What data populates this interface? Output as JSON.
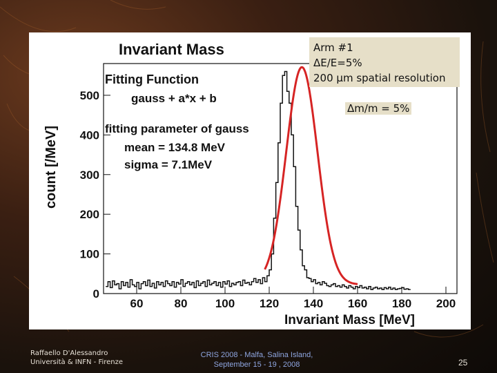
{
  "slide": {
    "footer_author_line1": "Raffaello D'Alessandro",
    "footer_author_line2": "Università & INFN - Firenze",
    "footer_conf_line1": "CRIS 2008 -   Malfa, Salina Island,",
    "footer_conf_line2": "September 15 - 19 , 2008",
    "page_number": "25"
  },
  "info_box": {
    "line1": "Arm #1",
    "line2": "ΔE/E=5%",
    "line3": "200 μm spatial resolution"
  },
  "mass_resolution_label": "Δm/m = 5%",
  "chart_data": {
    "type": "line",
    "title": "Invariant Mass",
    "xlabel": "Invariant Mass [MeV]",
    "ylabel": "count [/MeV]",
    "xlim": [
      45,
      205
    ],
    "ylim": [
      0,
      580
    ],
    "x_ticks": [
      60,
      80,
      100,
      120,
      140,
      160,
      180,
      200
    ],
    "y_ticks": [
      0,
      100,
      200,
      300,
      400,
      500
    ],
    "annotations": {
      "fitting_function_title": "Fitting Function",
      "fitting_function": "gauss + a*x + b",
      "params_title": "fitting parameter of gauss",
      "mean_text": "mean =  134.8 MeV",
      "sigma_text": "sigma = 7.1MeV"
    },
    "fit": {
      "mean": 134.8,
      "sigma": 7.1,
      "amplitude": 545,
      "a": -0.12,
      "b": 42
    },
    "series": [
      {
        "name": "histogram",
        "color": "#111111",
        "x_start": 46,
        "bin_width": 1,
        "values": [
          18,
          30,
          15,
          32,
          22,
          25,
          12,
          30,
          20,
          28,
          16,
          35,
          22,
          18,
          28,
          12,
          25,
          30,
          20,
          34,
          18,
          26,
          14,
          30,
          22,
          28,
          18,
          32,
          25,
          20,
          30,
          16,
          28,
          24,
          35,
          18,
          26,
          30,
          22,
          28,
          15,
          32,
          20,
          26,
          30,
          18,
          34,
          22,
          26,
          30,
          20,
          28,
          16,
          30,
          24,
          32,
          18,
          26,
          22,
          28,
          30,
          20,
          34,
          26,
          28,
          22,
          30,
          38,
          28,
          35,
          25,
          40,
          30,
          45,
          60,
          100,
          190,
          280,
          380,
          480,
          550,
          560,
          510,
          480,
          400,
          320,
          220,
          160,
          110,
          70,
          60,
          40,
          38,
          30,
          35,
          25,
          28,
          22,
          30,
          26,
          20,
          18,
          22,
          25,
          18,
          20,
          16,
          22,
          18,
          14,
          20,
          16,
          12,
          18,
          15,
          20,
          14,
          16,
          12,
          18,
          10,
          14,
          16,
          12,
          14,
          10,
          15,
          12,
          16,
          11,
          14,
          10,
          12,
          13,
          15,
          11,
          12,
          10
        ]
      },
      {
        "name": "fit",
        "color": "#d62424"
      }
    ]
  }
}
